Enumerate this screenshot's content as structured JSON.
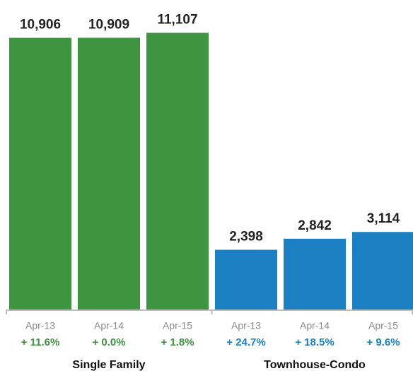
{
  "chart_data": {
    "type": "bar",
    "ylim": [
      0,
      12000
    ],
    "groups": [
      {
        "name": "Single Family",
        "color": "#3f9441",
        "categories": [
          "Apr-13",
          "Apr-14",
          "Apr-15"
        ],
        "values": [
          10906,
          10909,
          11107
        ],
        "value_labels": [
          "10,906",
          "10,909",
          "11,107"
        ],
        "changes": [
          "+ 11.6%",
          "+ 0.0%",
          "+ 1.8%"
        ]
      },
      {
        "name": "Townhouse-Condo",
        "color": "#1a80c2",
        "categories": [
          "Apr-13",
          "Apr-14",
          "Apr-15"
        ],
        "values": [
          2398,
          2842,
          3114
        ],
        "value_labels": [
          "2,398",
          "2,842",
          "3,114"
        ],
        "changes": [
          "+ 24.7%",
          "+ 18.5%",
          "+ 9.6%"
        ]
      }
    ]
  }
}
